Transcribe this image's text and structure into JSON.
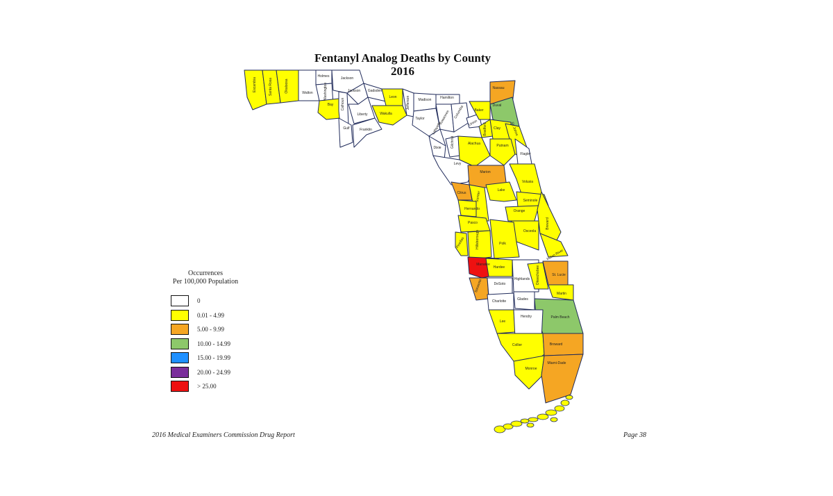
{
  "title": {
    "line1": "Fentanyl Analog Deaths by County",
    "line2": "2016"
  },
  "legend": {
    "title_line1": "Occurrences",
    "title_line2": "Per 100,000 Population",
    "items": [
      {
        "label": "0",
        "color": "#ffffff"
      },
      {
        "label": "0.01 - 4.99",
        "color": "#ffff00"
      },
      {
        "label": "5.00 - 9.99",
        "color": "#f5a623"
      },
      {
        "label": "10.00 - 14.99",
        "color": "#8dc86a"
      },
      {
        "label": "15.00 - 19.99",
        "color": "#1e90ff"
      },
      {
        "label": "20.00 - 24.99",
        "color": "#7a2e9b"
      },
      {
        "label": "> 25.00",
        "color": "#ee1111"
      }
    ]
  },
  "footer": {
    "left": "2016 Medical Examiners Commission Drug Report",
    "right": "Page 38"
  },
  "counties": [
    {
      "name": "Escambia",
      "bin": 1
    },
    {
      "name": "Santa Rosa",
      "bin": 1
    },
    {
      "name": "Okaloosa",
      "bin": 1
    },
    {
      "name": "Walton",
      "bin": 0
    },
    {
      "name": "Holmes",
      "bin": 0
    },
    {
      "name": "Washington",
      "bin": 0
    },
    {
      "name": "Jackson",
      "bin": 0
    },
    {
      "name": "Bay",
      "bin": 1
    },
    {
      "name": "Calhoun",
      "bin": 0
    },
    {
      "name": "Gulf",
      "bin": 0
    },
    {
      "name": "Jackson",
      "bin": 0
    },
    {
      "name": "Liberty",
      "bin": 0
    },
    {
      "name": "Franklin",
      "bin": 0
    },
    {
      "name": "Gadsden",
      "bin": 0
    },
    {
      "name": "Leon",
      "bin": 1
    },
    {
      "name": "Wakulla",
      "bin": 1
    },
    {
      "name": "Jefferson",
      "bin": 0
    },
    {
      "name": "Madison",
      "bin": 0
    },
    {
      "name": "Hamilton",
      "bin": 0
    },
    {
      "name": "Taylor",
      "bin": 0
    },
    {
      "name": "Suwannee",
      "bin": 0
    },
    {
      "name": "Lafayette",
      "bin": 0
    },
    {
      "name": "Columbia",
      "bin": 0
    },
    {
      "name": "Dixie",
      "bin": 0
    },
    {
      "name": "Gilchrist",
      "bin": 0
    },
    {
      "name": "Union",
      "bin": 0
    },
    {
      "name": "Baker",
      "bin": 1
    },
    {
      "name": "Nassau",
      "bin": 2
    },
    {
      "name": "Duval",
      "bin": 3
    },
    {
      "name": "Bradford",
      "bin": 1
    },
    {
      "name": "Clay",
      "bin": 1
    },
    {
      "name": "St. Johns",
      "bin": 1
    },
    {
      "name": "Alachua",
      "bin": 1
    },
    {
      "name": "Putnam",
      "bin": 1
    },
    {
      "name": "Flagler",
      "bin": 0
    },
    {
      "name": "Levy",
      "bin": 0
    },
    {
      "name": "Marion",
      "bin": 2
    },
    {
      "name": "Volusia",
      "bin": 1
    },
    {
      "name": "Citrus",
      "bin": 2
    },
    {
      "name": "Lake",
      "bin": 1
    },
    {
      "name": "Sumter",
      "bin": 1
    },
    {
      "name": "Seminole",
      "bin": 1
    },
    {
      "name": "Hernando",
      "bin": 1
    },
    {
      "name": "Orange",
      "bin": 1
    },
    {
      "name": "Brevard",
      "bin": 1
    },
    {
      "name": "Pasco",
      "bin": 1
    },
    {
      "name": "Osceola",
      "bin": 1
    },
    {
      "name": "Pinellas",
      "bin": 1
    },
    {
      "name": "Hillsborough",
      "bin": 1
    },
    {
      "name": "Polk",
      "bin": 1
    },
    {
      "name": "Indian River",
      "bin": 1
    },
    {
      "name": "Manatee",
      "bin": 6
    },
    {
      "name": "Hardee",
      "bin": 1
    },
    {
      "name": "Highlands",
      "bin": 0
    },
    {
      "name": "Okeechobee",
      "bin": 1
    },
    {
      "name": "St. Lucie",
      "bin": 2
    },
    {
      "name": "Sarasota",
      "bin": 2
    },
    {
      "name": "DeSoto",
      "bin": 0
    },
    {
      "name": "Martin",
      "bin": 1
    },
    {
      "name": "Charlotte",
      "bin": 0
    },
    {
      "name": "Glades",
      "bin": 0
    },
    {
      "name": "Palm Beach",
      "bin": 3
    },
    {
      "name": "Lee",
      "bin": 1
    },
    {
      "name": "Hendry",
      "bin": 0
    },
    {
      "name": "Collier",
      "bin": 1
    },
    {
      "name": "Broward",
      "bin": 2
    },
    {
      "name": "Monroe",
      "bin": 1
    },
    {
      "name": "Miami-Dade",
      "bin": 2
    }
  ]
}
